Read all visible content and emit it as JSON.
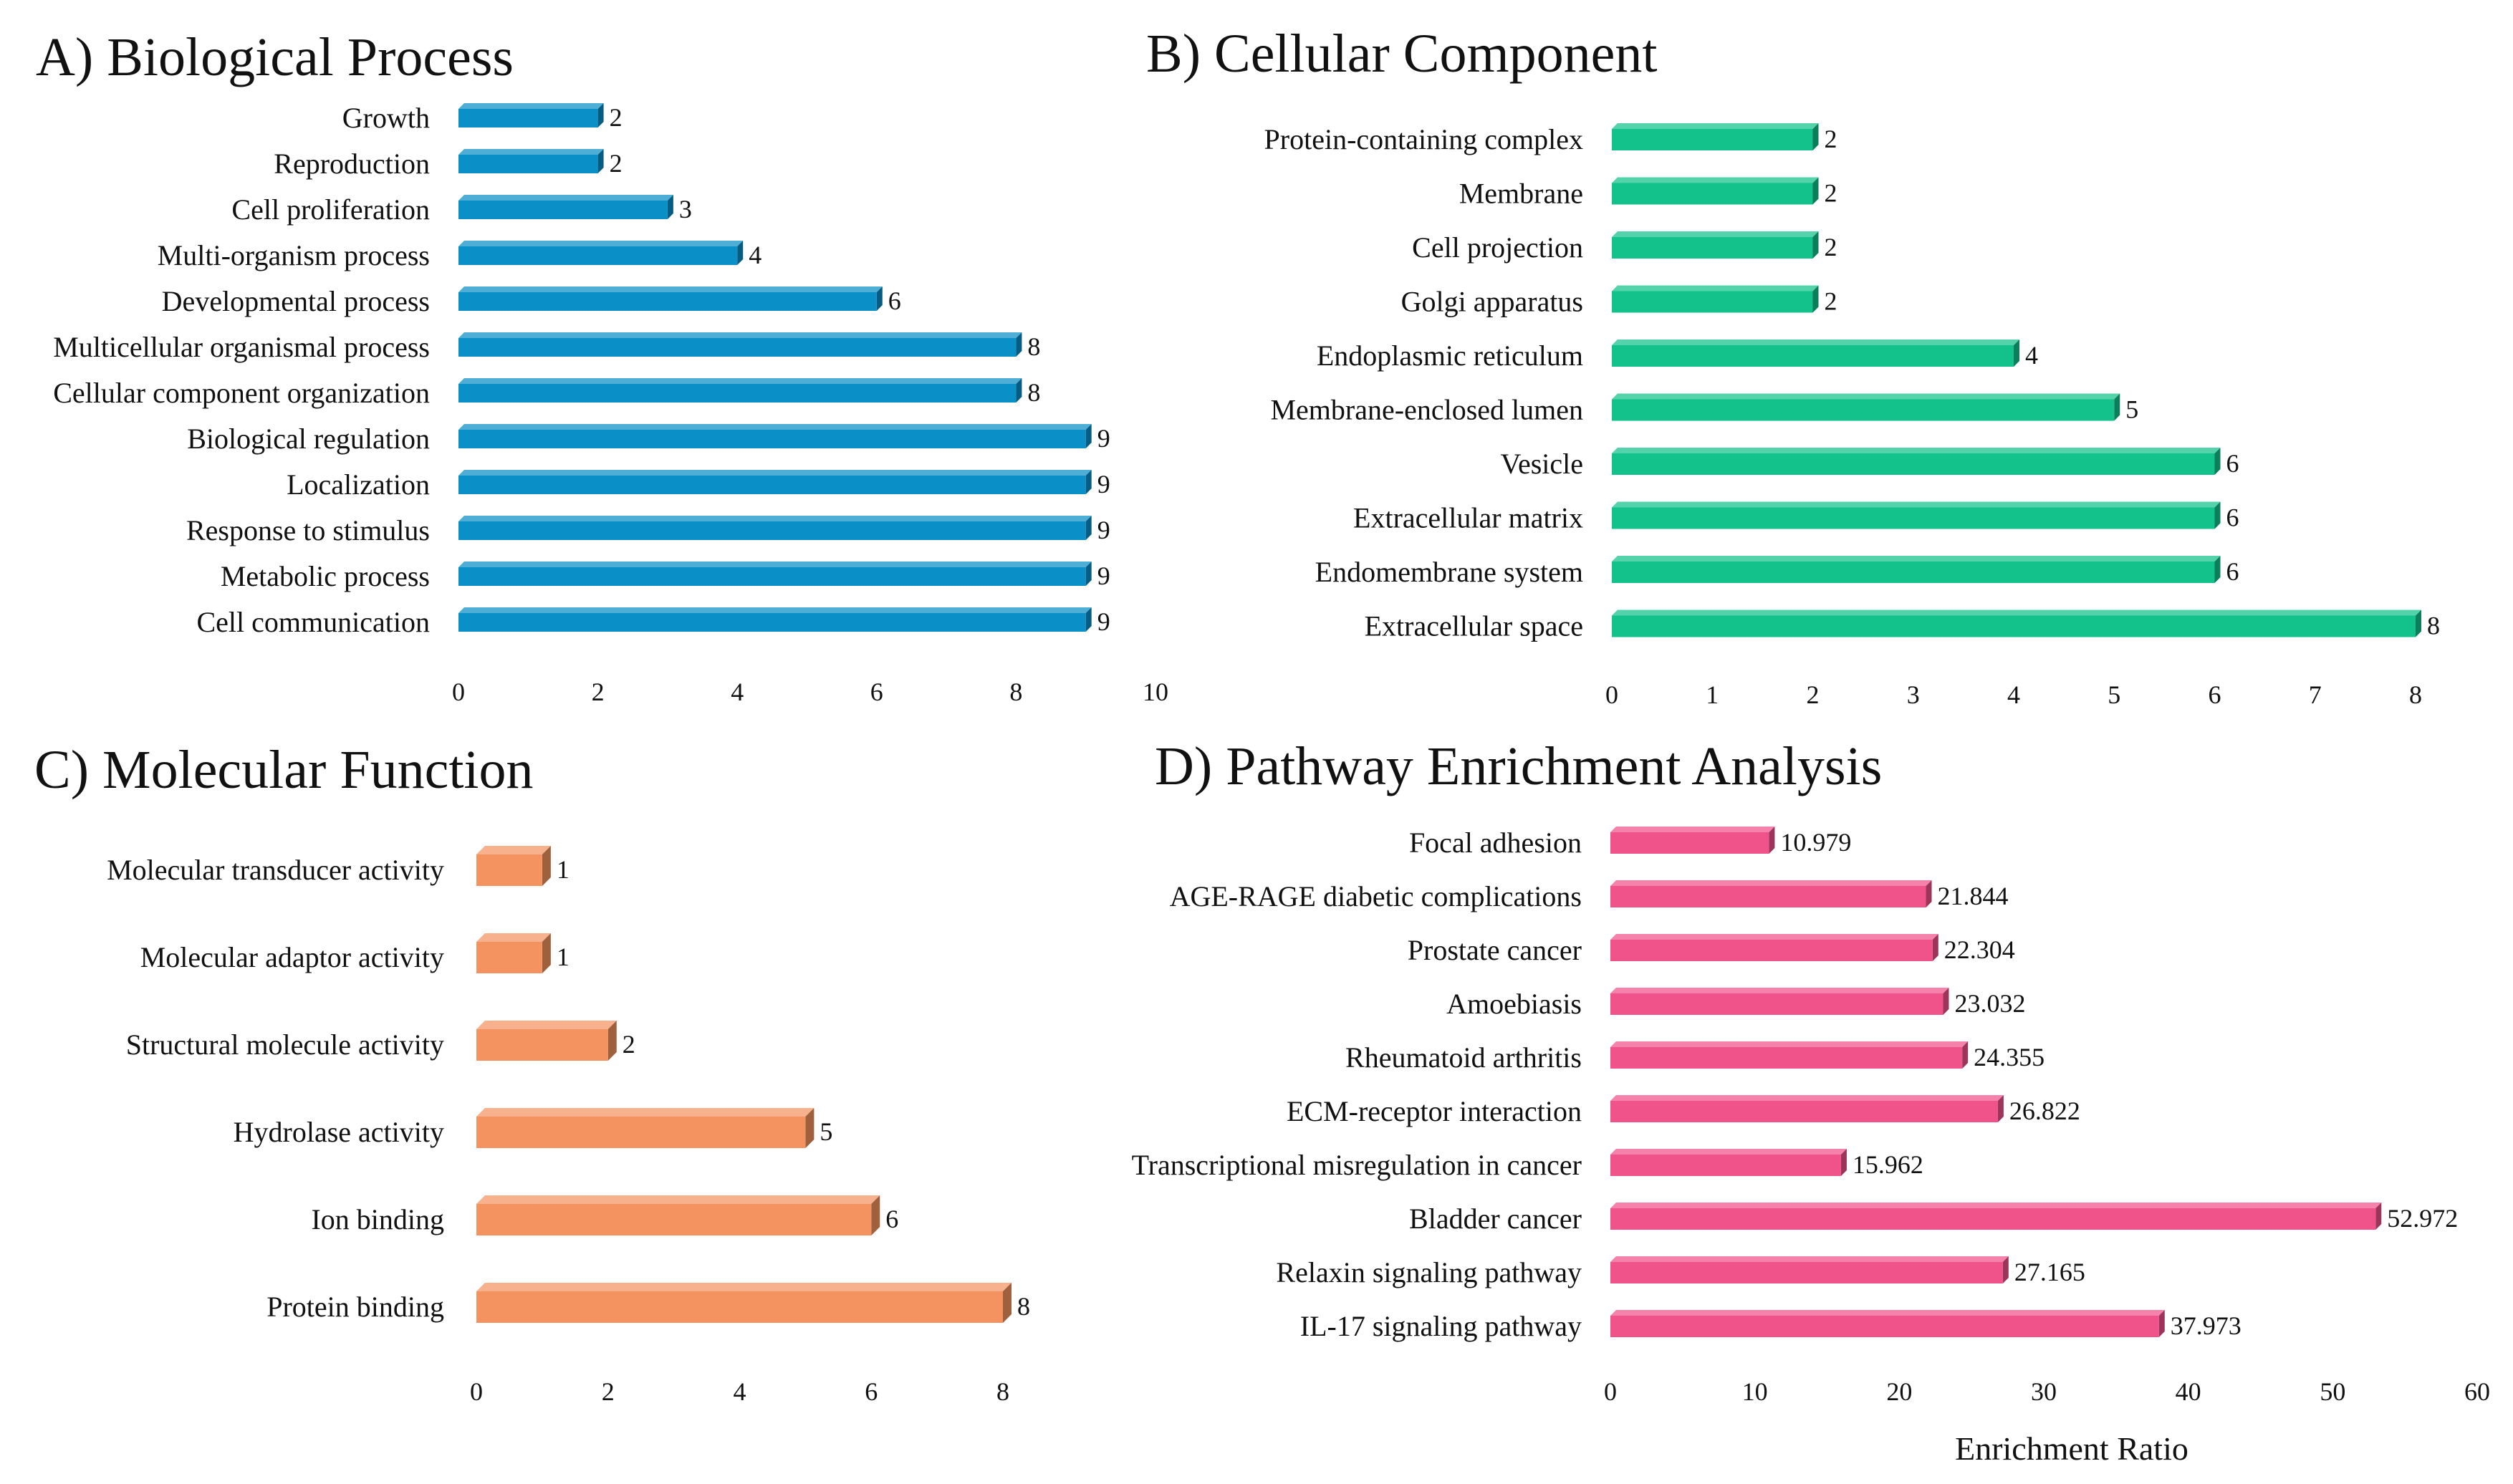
{
  "chart_data": [
    {
      "id": "A",
      "type": "bar",
      "orientation": "horizontal",
      "title": "A) Biological Process",
      "categories": [
        "Growth",
        "Reproduction",
        "Cell proliferation",
        "Multi-organism process",
        "Developmental process",
        "Multicellular organismal process",
        "Cellular component organization",
        "Biological regulation",
        "Localization",
        "Response to stimulus",
        "Metabolic process",
        "Cell communication"
      ],
      "values": [
        2,
        2,
        3,
        4,
        6,
        8,
        8,
        9,
        9,
        9,
        9,
        9
      ],
      "value_labels": [
        "2",
        "2",
        "3",
        "4",
        "6",
        "8",
        "8",
        "9",
        "9",
        "9",
        "9",
        "9"
      ],
      "xlim": [
        0,
        10
      ],
      "xticks": [
        0,
        2,
        4,
        6,
        8,
        10
      ],
      "xlabel": "",
      "color": "#0a8fc6"
    },
    {
      "id": "B",
      "type": "bar",
      "orientation": "horizontal",
      "title": "B) Cellular Component",
      "categories": [
        "Protein-containing complex",
        "Membrane",
        "Cell projection",
        "Golgi apparatus",
        "Endoplasmic reticulum",
        "Membrane-enclosed lumen",
        "Vesicle",
        "Extracellular matrix",
        "Endomembrane system",
        "Extracellular space"
      ],
      "values": [
        2,
        2,
        2,
        2,
        4,
        5,
        6,
        6,
        6,
        8
      ],
      "value_labels": [
        "2",
        "2",
        "2",
        "2",
        "4",
        "5",
        "6",
        "6",
        "6",
        "8"
      ],
      "xlim": [
        0,
        8
      ],
      "xticks": [
        0,
        1,
        2,
        3,
        4,
        5,
        6,
        7,
        8
      ],
      "xlabel": "",
      "color": "#12c28a"
    },
    {
      "id": "C",
      "type": "bar",
      "orientation": "horizontal",
      "title": "C) Molecular Function",
      "categories": [
        "Molecular transducer activity",
        "Molecular adaptor activity",
        "Structural molecule activity",
        "Hydrolase activity",
        "Ion binding",
        "Protein binding"
      ],
      "values": [
        1,
        1,
        2,
        5,
        6,
        8
      ],
      "value_labels": [
        "1",
        "1",
        "2",
        "5",
        "6",
        "8"
      ],
      "xlim": [
        0,
        8
      ],
      "xticks": [
        0,
        2,
        4,
        6,
        8
      ],
      "xlabel": "",
      "color": "#f4935f"
    },
    {
      "id": "D",
      "type": "bar",
      "orientation": "horizontal",
      "title": "D) Pathway Enrichment Analysis",
      "categories": [
        "Focal adhesion",
        "AGE-RAGE  diabetic complications",
        "Prostate cancer",
        "Amoebiasis",
        "Rheumatoid arthritis",
        "ECM-receptor interaction",
        "Transcriptional misregulation in cancer",
        "Bladder cancer",
        "Relaxin signaling pathway",
        "IL-17 signaling pathway"
      ],
      "values": [
        10.979,
        21.844,
        22.304,
        23.032,
        24.355,
        26.822,
        15.962,
        52.972,
        27.165,
        37.973
      ],
      "value_labels": [
        "10.979",
        "21.844",
        "22.304",
        "23.032",
        "24.355",
        "26.822",
        "15.962",
        "52.972",
        "27.165",
        "37.973"
      ],
      "xlim": [
        0,
        60
      ],
      "xticks": [
        0,
        10,
        20,
        30,
        40,
        50,
        60
      ],
      "xlabel": "Enrichment Ratio",
      "color": "#f0528a"
    }
  ]
}
